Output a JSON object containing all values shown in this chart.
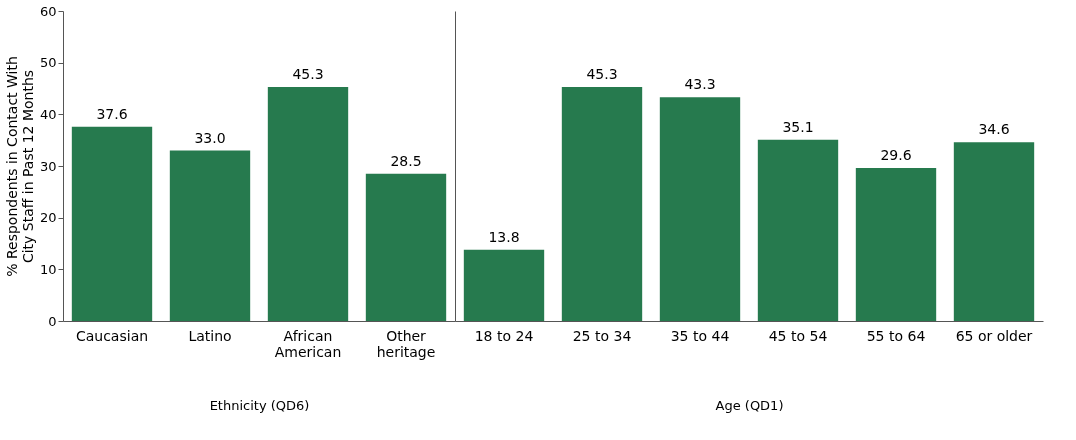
{
  "chart_data": [
    {
      "type": "bar",
      "xlabel": "Ethnicity (QD6)",
      "ylabel": "% Respondents in Contact With City Staff in Past 12 Months",
      "categories": [
        "Caucasian",
        "Latino",
        "African American",
        "Other heritage"
      ],
      "values": [
        37.6,
        33.0,
        45.3,
        28.5
      ],
      "value_labels": [
        "37.6",
        "33.0",
        "45.3",
        "28.5"
      ],
      "color": "#267a4e",
      "ylim": [
        0,
        60
      ],
      "yticks": [
        0,
        10,
        20,
        30,
        40,
        50,
        60
      ],
      "grid": false
    },
    {
      "type": "bar",
      "xlabel": "Age (QD1)",
      "categories": [
        "18 to 24",
        "25 to 34",
        "35 to 44",
        "45 to 54",
        "55 to 64",
        "65 or older"
      ],
      "values": [
        13.8,
        45.3,
        43.3,
        35.1,
        29.6,
        34.6
      ],
      "value_labels": [
        "13.8",
        "45.3",
        "43.3",
        "35.1",
        "29.6",
        "34.6"
      ],
      "color": "#267a4e",
      "ylim": [
        0,
        60
      ],
      "yticks": [
        0,
        10,
        20,
        30,
        40,
        50,
        60
      ],
      "grid": false,
      "tick_labels": "x"
    }
  ]
}
